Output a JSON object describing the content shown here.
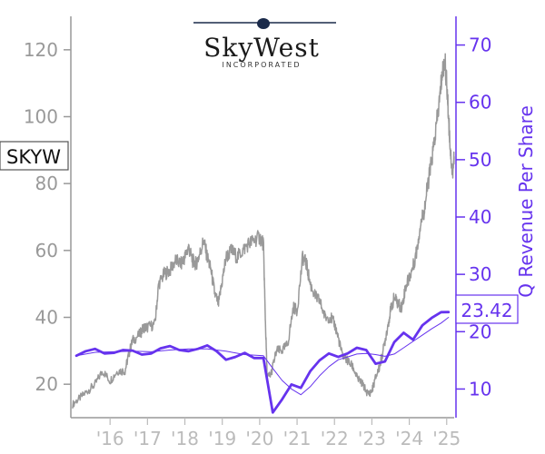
{
  "chart_data": {
    "type": "line",
    "ticker": "SKYW",
    "company_logo": {
      "name_text": "SkyWest",
      "sub_text": "INCORPORATED"
    },
    "ylabel_right": "Q Revenue Per Share",
    "last_value_label": "23.42",
    "y_left": {
      "ticks": [
        20,
        40,
        60,
        80,
        100,
        120
      ],
      "ylim": [
        10,
        130
      ]
    },
    "y_right": {
      "ticks": [
        10,
        20,
        30,
        40,
        50,
        60,
        70
      ],
      "ylim": [
        5,
        75
      ]
    },
    "x_ticks": [
      "'16",
      "'17",
      "'18",
      "'19",
      "'20",
      "'21",
      "'22",
      "'23",
      "'24",
      "'25"
    ],
    "x_range": [
      2015.0,
      2025.2
    ],
    "series": [
      {
        "role": "price",
        "axis": "left",
        "color": "#999999",
        "points": [
          [
            2015.0,
            14
          ],
          [
            2015.2,
            16
          ],
          [
            2015.4,
            18
          ],
          [
            2015.6,
            20
          ],
          [
            2015.8,
            24
          ],
          [
            2016.0,
            21
          ],
          [
            2016.2,
            24
          ],
          [
            2016.4,
            24
          ],
          [
            2016.5,
            29
          ],
          [
            2016.6,
            33
          ],
          [
            2016.8,
            35
          ],
          [
            2016.9,
            37
          ],
          [
            2017.0,
            37
          ],
          [
            2017.2,
            38
          ],
          [
            2017.3,
            50
          ],
          [
            2017.45,
            53
          ],
          [
            2017.6,
            54
          ],
          [
            2017.75,
            57
          ],
          [
            2017.9,
            56
          ],
          [
            2018.0,
            58
          ],
          [
            2018.1,
            61
          ],
          [
            2018.2,
            57
          ],
          [
            2018.3,
            56
          ],
          [
            2018.4,
            59
          ],
          [
            2018.5,
            63
          ],
          [
            2018.6,
            58
          ],
          [
            2018.7,
            54
          ],
          [
            2018.8,
            47
          ],
          [
            2018.9,
            44
          ],
          [
            2019.0,
            51
          ],
          [
            2019.1,
            58
          ],
          [
            2019.25,
            60
          ],
          [
            2019.4,
            58
          ],
          [
            2019.55,
            60
          ],
          [
            2019.7,
            62
          ],
          [
            2019.85,
            63
          ],
          [
            2020.0,
            64
          ],
          [
            2020.1,
            62
          ],
          [
            2020.15,
            40
          ],
          [
            2020.2,
            22
          ],
          [
            2020.3,
            23
          ],
          [
            2020.45,
            30
          ],
          [
            2020.6,
            30
          ],
          [
            2020.75,
            32
          ],
          [
            2020.9,
            43
          ],
          [
            2021.0,
            42
          ],
          [
            2021.15,
            58
          ],
          [
            2021.25,
            56
          ],
          [
            2021.35,
            50
          ],
          [
            2021.5,
            46
          ],
          [
            2021.6,
            45
          ],
          [
            2021.75,
            40
          ],
          [
            2021.9,
            40
          ],
          [
            2022.0,
            38
          ],
          [
            2022.1,
            34
          ],
          [
            2022.2,
            29
          ],
          [
            2022.35,
            27
          ],
          [
            2022.5,
            25
          ],
          [
            2022.6,
            22
          ],
          [
            2022.75,
            20
          ],
          [
            2022.9,
            17
          ],
          [
            2023.0,
            18
          ],
          [
            2023.1,
            22
          ],
          [
            2023.2,
            25
          ],
          [
            2023.3,
            30
          ],
          [
            2023.4,
            36
          ],
          [
            2023.5,
            42
          ],
          [
            2023.6,
            46
          ],
          [
            2023.7,
            44
          ],
          [
            2023.8,
            43
          ],
          [
            2023.9,
            49
          ],
          [
            2024.0,
            52
          ],
          [
            2024.1,
            55
          ],
          [
            2024.2,
            60
          ],
          [
            2024.3,
            68
          ],
          [
            2024.4,
            72
          ],
          [
            2024.5,
            80
          ],
          [
            2024.6,
            87
          ],
          [
            2024.7,
            95
          ],
          [
            2024.8,
            104
          ],
          [
            2024.87,
            112
          ],
          [
            2024.95,
            117
          ],
          [
            2025.0,
            110
          ],
          [
            2025.05,
            100
          ],
          [
            2025.1,
            90
          ],
          [
            2025.15,
            83
          ],
          [
            2025.2,
            88
          ]
        ]
      },
      {
        "role": "q_revenue_per_share",
        "axis": "right",
        "color": "#6633ee",
        "points": [
          [
            2015.1,
            15.8
          ],
          [
            2015.35,
            16.6
          ],
          [
            2015.6,
            17.0
          ],
          [
            2015.85,
            16.2
          ],
          [
            2016.1,
            16.3
          ],
          [
            2016.35,
            16.8
          ],
          [
            2016.6,
            16.7
          ],
          [
            2016.85,
            16.0
          ],
          [
            2017.1,
            16.2
          ],
          [
            2017.35,
            17.1
          ],
          [
            2017.6,
            17.5
          ],
          [
            2017.85,
            16.8
          ],
          [
            2018.1,
            16.6
          ],
          [
            2018.35,
            17.0
          ],
          [
            2018.6,
            17.6
          ],
          [
            2018.85,
            16.6
          ],
          [
            2019.1,
            15.1
          ],
          [
            2019.35,
            15.6
          ],
          [
            2019.6,
            16.3
          ],
          [
            2019.85,
            15.4
          ],
          [
            2020.1,
            15.4
          ],
          [
            2020.35,
            5.9
          ],
          [
            2020.6,
            8.2
          ],
          [
            2020.85,
            10.8
          ],
          [
            2021.1,
            10.2
          ],
          [
            2021.35,
            13.1
          ],
          [
            2021.6,
            15.0
          ],
          [
            2021.85,
            16.2
          ],
          [
            2022.1,
            15.6
          ],
          [
            2022.35,
            16.2
          ],
          [
            2022.6,
            17.2
          ],
          [
            2022.85,
            16.8
          ],
          [
            2023.1,
            14.4
          ],
          [
            2023.35,
            14.8
          ],
          [
            2023.6,
            18.2
          ],
          [
            2023.85,
            19.8
          ],
          [
            2024.1,
            18.6
          ],
          [
            2024.35,
            21.1
          ],
          [
            2024.6,
            22.4
          ],
          [
            2024.85,
            23.4
          ],
          [
            2025.05,
            23.42
          ]
        ]
      },
      {
        "role": "q_revenue_per_share_trend",
        "axis": "right",
        "color": "#6633ee",
        "points": [
          [
            2015.1,
            15.8
          ],
          [
            2015.6,
            16.4
          ],
          [
            2016.1,
            16.5
          ],
          [
            2016.6,
            16.6
          ],
          [
            2017.1,
            16.5
          ],
          [
            2017.6,
            16.8
          ],
          [
            2018.1,
            17.0
          ],
          [
            2018.6,
            17.0
          ],
          [
            2019.1,
            16.6
          ],
          [
            2019.6,
            16.0
          ],
          [
            2020.1,
            15.8
          ],
          [
            2020.35,
            13.6
          ],
          [
            2020.6,
            11.5
          ],
          [
            2020.85,
            10.0
          ],
          [
            2021.1,
            9.0
          ],
          [
            2021.35,
            10.4
          ],
          [
            2021.6,
            12.3
          ],
          [
            2021.85,
            13.9
          ],
          [
            2022.1,
            15.1
          ],
          [
            2022.35,
            15.6
          ],
          [
            2022.6,
            16.1
          ],
          [
            2022.85,
            16.2
          ],
          [
            2023.1,
            16.0
          ],
          [
            2023.35,
            15.7
          ],
          [
            2023.6,
            16.1
          ],
          [
            2023.85,
            17.2
          ],
          [
            2024.1,
            18.3
          ],
          [
            2024.35,
            19.4
          ],
          [
            2024.6,
            20.5
          ],
          [
            2024.85,
            21.5
          ],
          [
            2025.05,
            22.5
          ]
        ]
      }
    ]
  }
}
